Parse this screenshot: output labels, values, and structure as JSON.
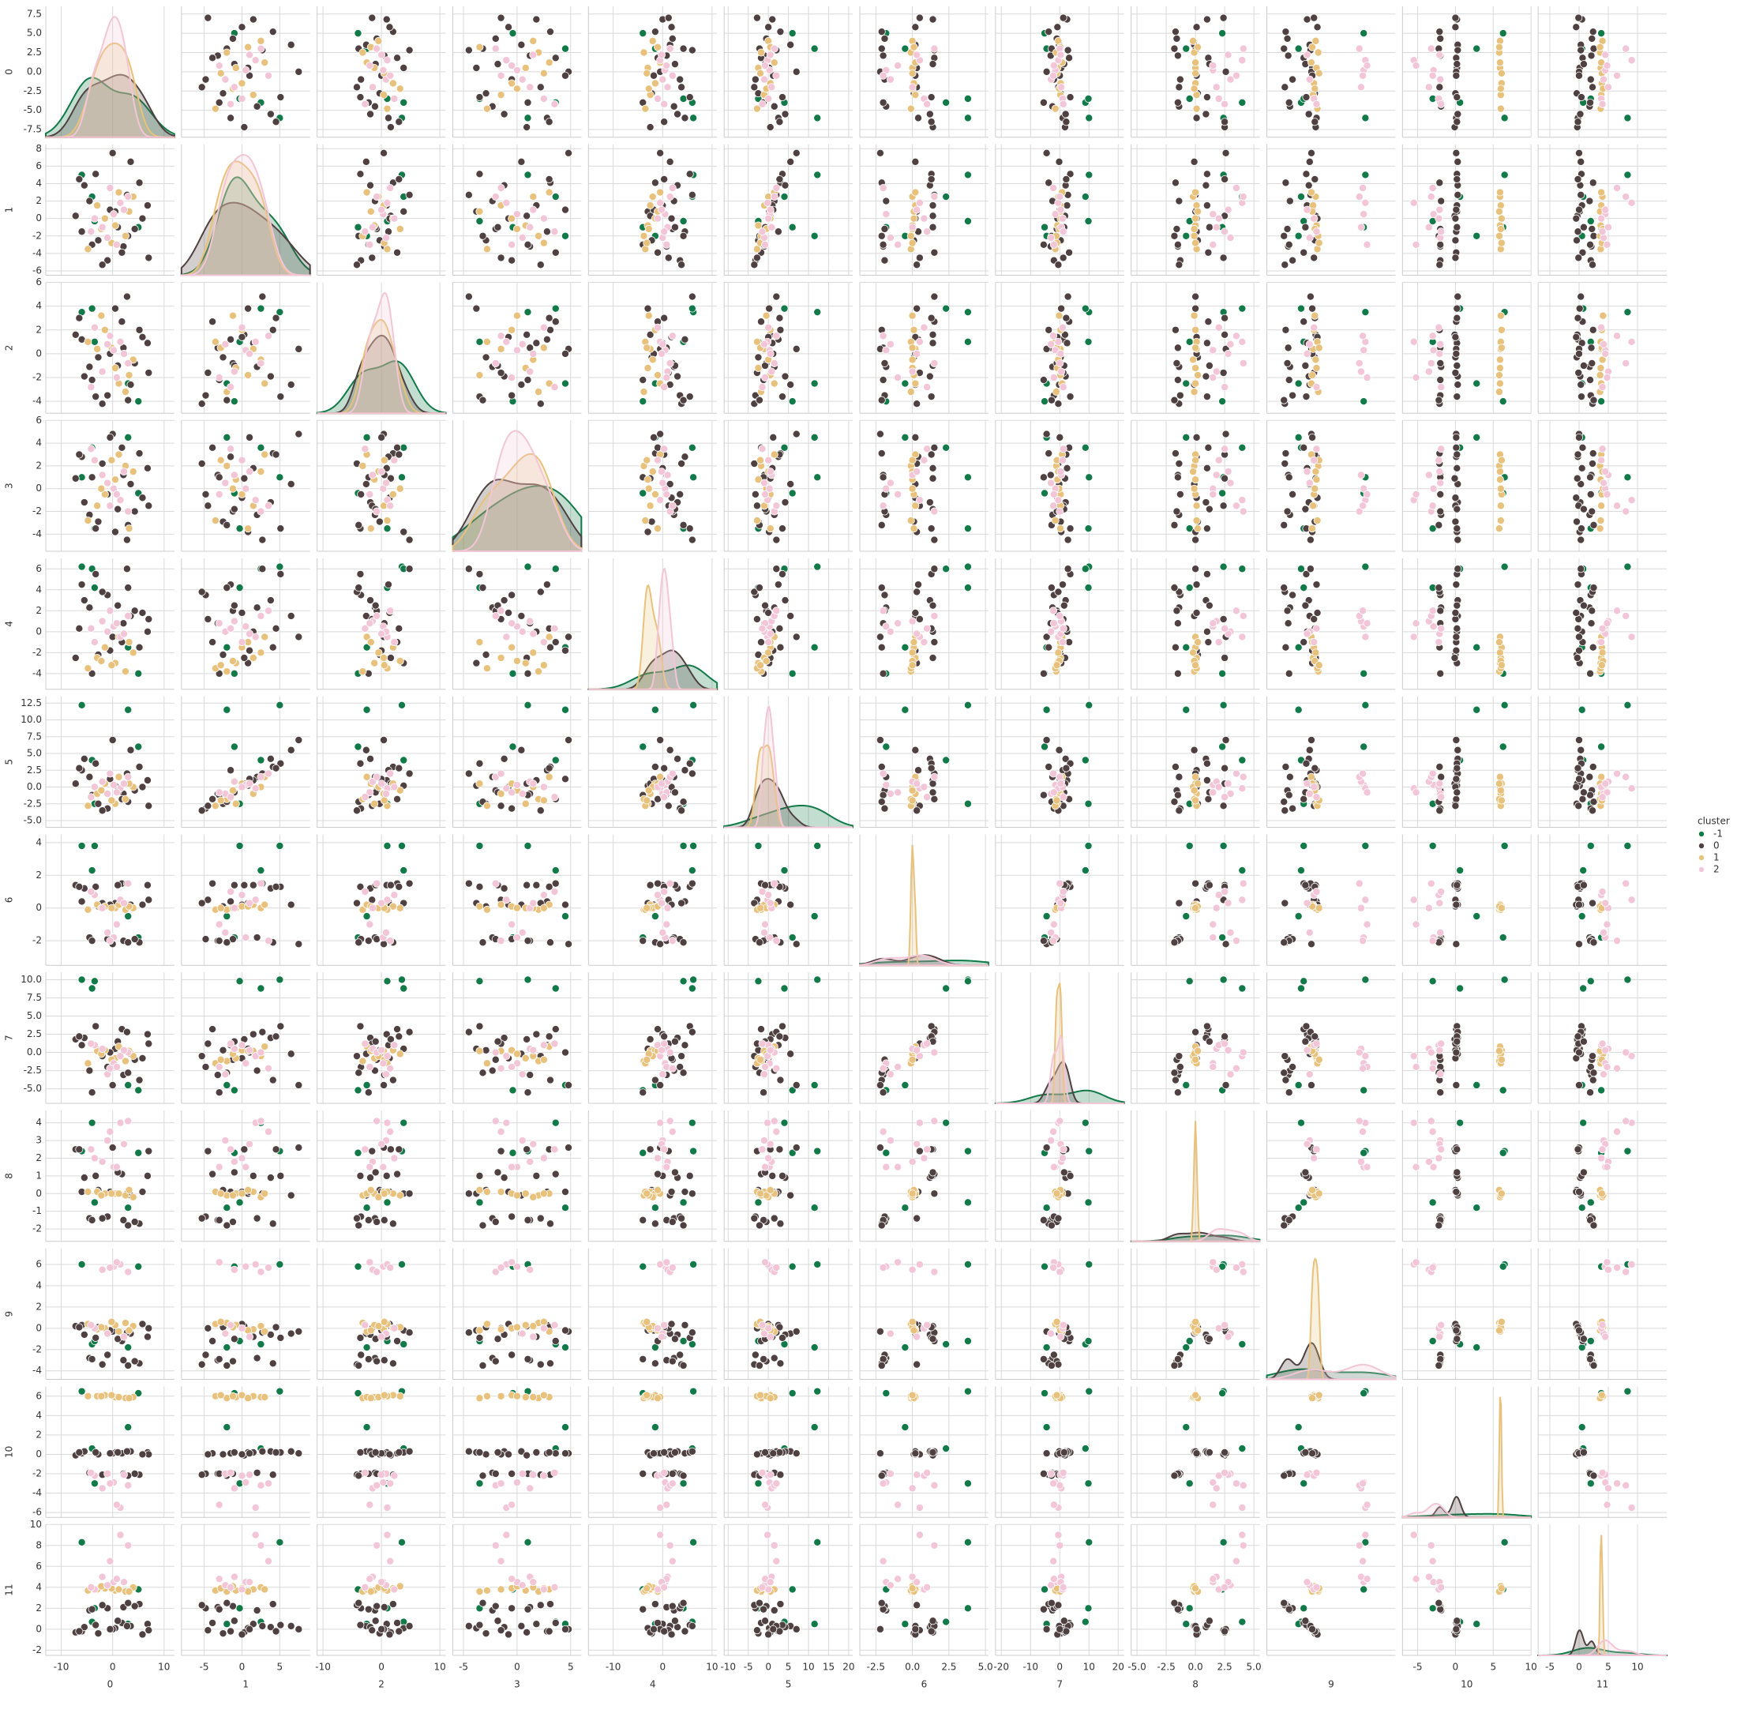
{
  "chart_data": {
    "type": "pairplot",
    "grid": true,
    "legend_title": "cluster",
    "variables": [
      {
        "name": "0",
        "xlim": [
          -13,
          12
        ],
        "xticks": [
          -10,
          0,
          10
        ],
        "ylim": [
          -8.5,
          8.5
        ],
        "yticks": [
          {
            "value": -7.5,
            "label": "-7.5"
          },
          {
            "value": -5,
            "label": "-5.0"
          },
          {
            "value": -2.5,
            "label": "-2.5"
          },
          {
            "value": 0,
            "label": "0.0"
          },
          {
            "value": 2.5,
            "label": "2.5"
          },
          {
            "value": 5,
            "label": "5.0"
          },
          {
            "value": 7.5,
            "label": "7.5"
          }
        ]
      },
      {
        "name": "1",
        "xlim": [
          -8,
          9
        ],
        "xticks": [
          -5,
          0,
          5
        ],
        "ylim": [
          -6.5,
          8.5
        ],
        "yticks": [
          -6,
          -4,
          -2,
          0,
          2,
          4,
          6,
          8
        ]
      },
      {
        "name": "2",
        "xlim": [
          -11,
          11
        ],
        "xticks": [
          -10,
          0,
          10
        ],
        "ylim": [
          -5,
          6
        ],
        "yticks": [
          -4,
          -2,
          0,
          2,
          4,
          6
        ]
      },
      {
        "name": "3",
        "xlim": [
          -6,
          6
        ],
        "xticks": [
          -5,
          0,
          5
        ],
        "ylim": [
          -5.5,
          6
        ],
        "yticks": [
          -4,
          -2,
          0,
          2,
          4,
          6
        ]
      },
      {
        "name": "4",
        "xlim": [
          -15,
          11
        ],
        "xticks": [
          -10,
          0,
          10
        ],
        "ylim": [
          -5.5,
          7
        ],
        "yticks": [
          -4,
          -2,
          0,
          2,
          4,
          6
        ]
      },
      {
        "name": "5",
        "xlim": [
          -11,
          21
        ],
        "xticks": [
          -10,
          -5,
          0,
          5,
          10,
          15,
          20
        ],
        "ylim": [
          -6,
          13.5
        ],
        "yticks": [
          {
            "value": -5,
            "label": "-5.0"
          },
          {
            "value": -2.5,
            "label": "-2.5"
          },
          {
            "value": 0,
            "label": "0.0"
          },
          {
            "value": 2.5,
            "label": "2.5"
          },
          {
            "value": 5,
            "label": "5.0"
          },
          {
            "value": 7.5,
            "label": "7.5"
          },
          {
            "value": 10,
            "label": "10.0"
          },
          {
            "value": 12.5,
            "label": "12.5"
          }
        ]
      },
      {
        "name": "6",
        "xlim": [
          -3.6,
          5.2
        ],
        "xticks": [
          {
            "value": -2.5,
            "label": "-2.5"
          },
          {
            "value": 0,
            "label": "0.0"
          },
          {
            "value": 2.5,
            "label": "2.5"
          },
          {
            "value": 5,
            "label": "5.0"
          }
        ],
        "ylim": [
          -3.5,
          4.5
        ],
        "yticks": [
          -2,
          0,
          2,
          4
        ]
      },
      {
        "name": "7",
        "xlim": [
          -22,
          22
        ],
        "xticks": [
          -20,
          -10,
          0,
          10,
          20
        ],
        "ylim": [
          -7,
          11
        ],
        "yticks": [
          {
            "value": -5,
            "label": "-5.0"
          },
          {
            "value": -2.5,
            "label": "-2.5"
          },
          {
            "value": 0,
            "label": "0.0"
          },
          {
            "value": 2.5,
            "label": "2.5"
          },
          {
            "value": 5,
            "label": "5.0"
          },
          {
            "value": 7.5,
            "label": "7.5"
          },
          {
            "value": 10,
            "label": "10.0"
          }
        ]
      },
      {
        "name": "8",
        "xlim": [
          -5.5,
          5.5
        ],
        "xticks": [
          {
            "value": -5,
            "label": "-5.0"
          },
          {
            "value": -2.5,
            "label": "-2.5"
          },
          {
            "value": 0,
            "label": "0.0"
          },
          {
            "value": 2.5,
            "label": "2.5"
          },
          {
            "value": 5,
            "label": "5.0"
          }
        ],
        "ylim": [
          -2.7,
          4.7
        ],
        "yticks": [
          -2,
          -1,
          0,
          1,
          2,
          3,
          4
        ]
      },
      {
        "name": "9",
        "xlim": [
          -5.5,
          9.5
        ],
        "ylim": [
          -4.8,
          7.5
        ],
        "yticks": [
          -4,
          -2,
          0,
          2,
          4,
          6
        ]
      },
      {
        "name": "10",
        "xlim": [
          -7,
          10
        ],
        "xticks": [
          -5,
          0,
          5,
          10
        ],
        "ylim": [
          -6.5,
          7
        ],
        "yticks": [
          -6,
          -4,
          -2,
          0,
          2,
          4,
          6
        ]
      },
      {
        "name": "11",
        "xlim": [
          -7,
          15
        ],
        "xticks": [
          -5,
          0,
          5,
          10
        ],
        "ylim": [
          -2.5,
          10
        ],
        "yticks": [
          -2,
          0,
          2,
          4,
          6,
          8,
          10
        ]
      }
    ],
    "series": [
      {
        "name": "-1",
        "color": "#117a48",
        "points": [
          [
            -6.0,
            5.0,
            3.5,
            1.0,
            6.2,
            12.2,
            3.8,
            10.0,
            2.4,
            6.0,
            6.5,
            8.3
          ],
          [
            -4.0,
            2.5,
            3.8,
            3.6,
            6.0,
            4.0,
            2.3,
            8.8,
            4.0,
            -1.5,
            0.6,
            0.7
          ],
          [
            3.0,
            -2.0,
            -2.5,
            4.5,
            -1.5,
            11.5,
            -0.5,
            -4.5,
            -0.8,
            -1.8,
            2.8,
            0.5
          ],
          [
            -3.5,
            -0.3,
            1.0,
            -3.5,
            4.2,
            -2.5,
            3.8,
            9.8,
            -0.5,
            -1.2,
            -3.0,
            2.0
          ],
          [
            5.0,
            -1.0,
            -4.0,
            -0.4,
            -4.0,
            6.0,
            -1.8,
            -5.2,
            2.3,
            5.8,
            6.3,
            3.8
          ]
        ]
      },
      {
        "name": "0",
        "color": "#4f4141",
        "points": [
          [
            2.1,
            -3.2,
            0.5,
            1.2,
            0.8,
            -1.0,
            -2.0,
            -3.1,
            -1.5,
            -3.0,
            -2.0,
            2.1
          ],
          [
            -4.5,
            2.0,
            -1.1,
            -2.3,
            2.3,
            1.5,
            -1.8,
            -2.5,
            -1.4,
            -2.8,
            -1.9,
            1.8
          ],
          [
            5.2,
            4.1,
            2.0,
            3.1,
            -1.5,
            3.0,
            -2.1,
            -3.8,
            -1.7,
            -3.3,
            -2.1,
            2.4
          ],
          [
            -1.0,
            -4.8,
            -3.5,
            -0.5,
            3.5,
            -3.2,
            -1.9,
            -2.0,
            -1.3,
            -2.5,
            -2.0,
            2.0
          ],
          [
            0.5,
            0.8,
            3.8,
            -3.8,
            -3.0,
            0.2,
            0.3,
            0.5,
            0.0,
            -0.2,
            0.2,
            0.1
          ],
          [
            -6.0,
            -1.5,
            1.2,
            2.8,
            4.5,
            2.5,
            0.4,
            1.0,
            0.1,
            0.3,
            0.1,
            -0.2
          ],
          [
            3.5,
            6.5,
            -2.6,
            0.4,
            1.5,
            5.5,
            0.2,
            -0.2,
            -0.1,
            -0.5,
            0.3,
            0.3
          ],
          [
            -2.8,
            -2.5,
            -0.3,
            -2.9,
            -2.2,
            -2.5,
            0.1,
            0.3,
            0.2,
            0.1,
            0.0,
            -0.4
          ],
          [
            6.8,
            1.5,
            0.9,
            1.8,
            0.0,
            1.0,
            1.4,
            2.5,
            1.0,
            -0.8,
            0.2,
            0.5
          ],
          [
            -5.5,
            3.8,
            -1.9,
            -1.2,
            3.0,
            4.2,
            1.2,
            2.0,
            0.9,
            -0.6,
            0.3,
            0.2
          ],
          [
            1.8,
            -3.9,
            2.7,
            3.6,
            -1.0,
            -1.8,
            1.5,
            3.2,
            1.1,
            -1.2,
            0.1,
            0.6
          ],
          [
            -3.3,
            5.1,
            -3.6,
            -3.5,
            5.5,
            3.5,
            1.3,
            3.6,
            1.0,
            -0.9,
            0.2,
            0.4
          ],
          [
            4.3,
            -1.2,
            -0.8,
            -2.0,
            2.0,
            -0.5,
            -1.9,
            -1.0,
            -1.6,
            -3.1,
            -2.0,
            2.2
          ],
          [
            -7.2,
            0.3,
            1.6,
            0.9,
            -2.5,
            0.5,
            1.4,
            1.8,
            2.5,
            0.2,
            -0.1,
            -0.3
          ],
          [
            7.0,
            -4.5,
            -1.6,
            -1.5,
            1.2,
            -2.8,
            0.5,
            1.2,
            2.4,
            0.0,
            0.0,
            -0.1
          ],
          [
            0.0,
            7.5,
            0.4,
            4.8,
            -0.5,
            7.0,
            -2.2,
            -4.5,
            2.6,
            -0.3,
            0.1,
            0.0
          ],
          [
            -2.0,
            -5.3,
            -4.2,
            2.2,
            3.8,
            -3.5,
            0.3,
            -0.5,
            -1.4,
            -3.4,
            -2.1,
            2.3
          ],
          [
            2.8,
            2.7,
            4.8,
            -4.5,
            6.0,
            2.0,
            1.5,
            2.8,
            0.0,
            -0.4,
            0.3,
            0.3
          ],
          [
            -4.0,
            -3.0,
            -2.2,
            1.0,
            -4.0,
            -1.2,
            -2.0,
            -5.5,
            -1.5,
            -2.9,
            -2.0,
            1.9
          ],
          [
            5.8,
            0.0,
            1.4,
            -0.8,
            1.8,
            0.0,
            0.2,
            -0.8,
            0.1,
            0.4,
            0.0,
            -0.5
          ],
          [
            -6.5,
            4.5,
            3.0,
            3.0,
            0.3,
            2.8,
            1.3,
            2.2,
            2.5,
            0.1,
            0.2,
            -0.2
          ],
          [
            3.0,
            -2.0,
            -3.9,
            -3.2,
            4.2,
            -2.2,
            -2.1,
            -2.8,
            -1.8,
            -3.5,
            -2.2,
            2.5
          ],
          [
            -0.5,
            1.0,
            0.0,
            4.5,
            -1.8,
            1.2,
            0.2,
            0.0,
            0.1,
            -0.2,
            0.1,
            0.0
          ],
          [
            1.0,
            -1.0,
            -1.0,
            -1.8,
            2.5,
            -0.8,
            1.4,
            1.5,
            1.2,
            -1.0,
            0.2,
            0.8
          ]
        ]
      },
      {
        "name": "1",
        "color": "#e8c27c",
        "points": [
          [
            0.5,
            -0.8,
            -1.2,
            0.8,
            -3.0,
            -2.5,
            0.0,
            -0.8,
            0.0,
            0.3,
            5.9,
            3.7
          ],
          [
            -3.0,
            1.5,
            0.4,
            -1.5,
            -2.5,
            -1.0,
            0.2,
            0.2,
            0.1,
            -0.1,
            6.0,
            3.8
          ],
          [
            2.5,
            -2.0,
            -3.2,
            2.0,
            -3.8,
            -1.8,
            -0.1,
            -1.2,
            -0.1,
            0.5,
            5.8,
            3.6
          ],
          [
            -1.5,
            0.0,
            2.0,
            -0.5,
            -1.5,
            0.5,
            0.1,
            0.3,
            0.0,
            0.0,
            6.1,
            3.9
          ],
          [
            4.0,
            2.5,
            -0.5,
            1.5,
            -2.0,
            0.0,
            0.0,
            -0.5,
            -0.2,
            0.2,
            5.9,
            4.0
          ],
          [
            -4.8,
            -3.5,
            1.0,
            -2.8,
            -3.5,
            -2.8,
            -0.1,
            -1.5,
            0.1,
            0.4,
            6.0,
            3.7
          ],
          [
            1.2,
            3.0,
            -2.5,
            3.0,
            -0.5,
            1.5,
            0.2,
            0.8,
            0.0,
            -0.3,
            5.9,
            3.8
          ],
          [
            -2.2,
            -1.2,
            3.2,
            0.0,
            -2.8,
            -0.5,
            0.0,
            -0.2,
            -0.1,
            0.1,
            6.0,
            4.1
          ],
          [
            3.2,
            0.8,
            -1.8,
            -3.5,
            -1.0,
            0.5,
            0.1,
            0.2,
            0.2,
            -0.2,
            5.8,
            3.6
          ],
          [
            -0.2,
            -2.8,
            0.5,
            2.5,
            -3.2,
            -2.0,
            0.0,
            -1.0,
            0.0,
            0.6,
            6.1,
            3.9
          ]
        ]
      },
      {
        "name": "2",
        "color": "#f2c6d6",
        "points": [
          [
            0.2,
            0.5,
            0.3,
            0.0,
            0.5,
            0.3,
            -1.8,
            -1.5,
            1.5,
            5.8,
            -2.9,
            4.5
          ],
          [
            -2.0,
            -1.0,
            -1.5,
            1.2,
            1.0,
            0.8,
            0.0,
            0.5,
            1.8,
            5.5,
            -3.5,
            5.0
          ],
          [
            1.5,
            1.8,
            1.0,
            -1.0,
            -0.5,
            -0.2,
            0.5,
            -0.5,
            4.0,
            6.0,
            -5.5,
            9.0
          ],
          [
            -1.0,
            -2.2,
            0.8,
            0.5,
            0.0,
            -1.0,
            -1.5,
            -3.0,
            3.0,
            -0.5,
            -2.0,
            4.2
          ],
          [
            3.0,
            2.5,
            -0.8,
            -2.0,
            1.5,
            1.5,
            1.5,
            0.0,
            4.1,
            5.3,
            -3.2,
            8.0
          ],
          [
            -3.5,
            0.0,
            2.2,
            2.5,
            -1.0,
            0.0,
            0.8,
            1.0,
            2.0,
            0.0,
            -2.2,
            3.8
          ],
          [
            0.8,
            -3.0,
            -2.0,
            -0.5,
            0.8,
            -0.8,
            -1.0,
            -2.0,
            1.5,
            6.2,
            -5.2,
            4.8
          ],
          [
            2.2,
            1.0,
            0.0,
            1.5,
            -0.2,
            0.5,
            0.3,
            0.3,
            2.8,
            -0.8,
            -2.1,
            4.5
          ],
          [
            -0.5,
            3.5,
            1.5,
            -1.5,
            2.0,
            2.0,
            -2.0,
            -2.2,
            3.5,
            5.7,
            -3.0,
            6.5
          ],
          [
            -4.2,
            -1.5,
            -2.8,
            3.5,
            0.3,
            -1.5,
            1.0,
            1.2,
            2.5,
            0.3,
            -1.9,
            4.0
          ]
        ]
      }
    ]
  }
}
